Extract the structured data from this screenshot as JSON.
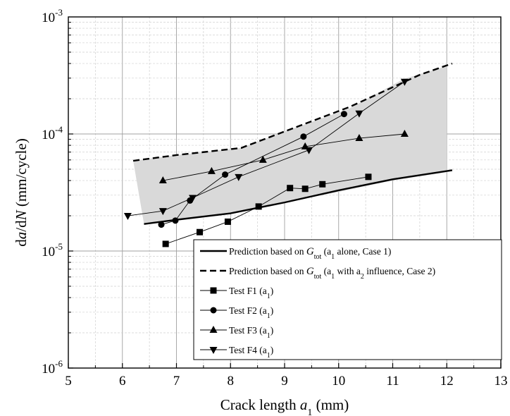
{
  "chart_data": {
    "type": "line",
    "title": "",
    "xlabel": {
      "prefix": "Crack length ",
      "var": "a",
      "sub": "1",
      "suffix": " (mm)"
    },
    "ylabel": {
      "d1": "d",
      "v1": "a",
      "slash": "/d",
      "v2": "N",
      "suffix": " (mm/cycle)"
    },
    "xlim": [
      5,
      13
    ],
    "ylim": [
      1e-06,
      0.001
    ],
    "yscale": "log",
    "grid": true,
    "legend_position": "bottom-right",
    "x_ticks": [
      "5",
      "6",
      "7",
      "8",
      "9",
      "10",
      "11",
      "12",
      "13"
    ],
    "y_ticks": [
      {
        "value": 1e-06,
        "base": "10",
        "exp": "-6"
      },
      {
        "value": 1e-05,
        "base": "10",
        "exp": "-5"
      },
      {
        "value": 0.0001,
        "base": "10",
        "exp": "-4"
      },
      {
        "value": 0.001,
        "base": "10",
        "exp": "-3"
      }
    ],
    "band": {
      "color": "#d9d9d9",
      "upper": [
        [
          6.2,
          5.9e-05
        ],
        [
          7.0,
          6.6e-05
        ],
        [
          8.2,
          7.6e-05
        ],
        [
          9.0,
          0.000105
        ],
        [
          10.2,
          0.000165
        ],
        [
          11.2,
          0.000295
        ],
        [
          12.0,
          0.00038
        ]
      ],
      "lower": [
        [
          6.4,
          1.7e-05
        ],
        [
          8.0,
          2.1e-05
        ],
        [
          9.0,
          2.6e-05
        ],
        [
          10.0,
          3.2e-05
        ],
        [
          11.0,
          4e-05
        ],
        [
          12.0,
          4.7e-05
        ]
      ]
    },
    "series": [
      {
        "name": "Prediction based on ",
        "gsym": "G",
        "gsub": "tot",
        "detail": " (a",
        "detail_sub": "1",
        "detail_end": " alone, Case 1)",
        "style": "solid",
        "x": [
          6.4,
          7.0,
          8.0,
          9.0,
          10.0,
          11.0,
          12.1
        ],
        "values": [
          1.7e-05,
          1.85e-05,
          2.1e-05,
          2.6e-05,
          3.3e-05,
          4.1e-05,
          4.9e-05
        ]
      },
      {
        "name": "Prediction based on ",
        "gsym": "G",
        "gsub": "tot",
        "detail": " (a",
        "detail_sub": "1",
        "detail_end": " with a",
        "detail_sub2": "2",
        "detail_end2": " influence, Case 2)",
        "style": "dashed",
        "x": [
          6.2,
          7.0,
          8.2,
          9.0,
          10.2,
          11.5,
          12.1
        ],
        "values": [
          5.9e-05,
          6.6e-05,
          7.6e-05,
          0.000105,
          0.00017,
          0.00032,
          0.0004
        ]
      },
      {
        "name": "Test F1 (a",
        "name_sub": "1",
        "name_end": ")",
        "marker": "square",
        "x": [
          6.8,
          7.43,
          7.95,
          8.52,
          9.1,
          9.38,
          9.7,
          10.55
        ],
        "values": [
          1.15e-05,
          1.45e-05,
          1.78e-05,
          2.4e-05,
          3.45e-05,
          3.4e-05,
          3.72e-05,
          4.3e-05
        ]
      },
      {
        "name": "Test F2 (a",
        "name_sub": "1",
        "name_end": ")",
        "marker": "circle",
        "x": [
          6.72,
          6.98,
          7.25,
          7.9,
          9.35,
          10.1
        ],
        "values": [
          1.68e-05,
          1.82e-05,
          2.7e-05,
          4.5e-05,
          9.5e-05,
          0.000148
        ]
      },
      {
        "name": "Test F3 (a",
        "name_sub": "1",
        "name_end": ")",
        "marker": "triangle-up",
        "x": [
          6.75,
          7.65,
          8.6,
          9.38,
          10.38,
          11.22
        ],
        "values": [
          4e-05,
          4.8e-05,
          6e-05,
          7.8e-05,
          9.2e-05,
          0.0001
        ]
      },
      {
        "name": "Test F4 (a",
        "name_sub": "1",
        "name_end": ")",
        "marker": "triangle-down",
        "x": [
          6.1,
          6.75,
          7.3,
          8.15,
          9.45,
          10.38,
          11.22
        ],
        "values": [
          2e-05,
          2.2e-05,
          2.85e-05,
          4.3e-05,
          7.3e-05,
          0.00015,
          0.00028
        ]
      }
    ]
  }
}
